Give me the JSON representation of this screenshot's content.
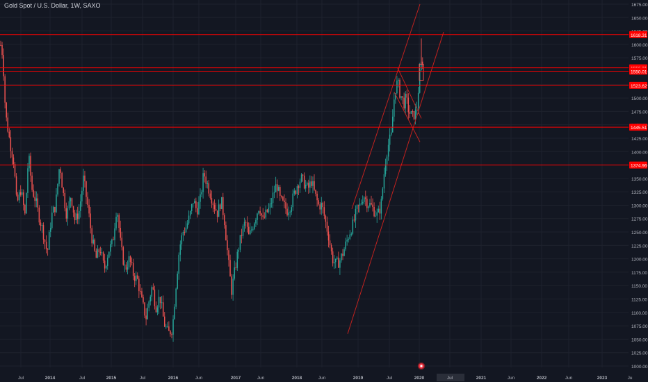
{
  "header": {
    "title": "Gold Spot / U.S. Dollar, 1W, SAXO"
  },
  "colors": {
    "background": "#131722",
    "grid": "#1e222d",
    "up": "#26a69a",
    "down": "#ef5350",
    "level_line": "#ff0000",
    "trend_line": "#c2221f",
    "axis_text": "#b2b5be"
  },
  "chart_data": {
    "type": "candlestick",
    "symbol": "Gold Spot / U.S. Dollar",
    "interval": "1W",
    "source": "SAXO",
    "ylim": [
      1000,
      1675
    ],
    "y_ticks": [
      1000,
      1025,
      1050,
      1075,
      1100,
      1125,
      1150,
      1175,
      1200,
      1225,
      1250,
      1275,
      1300,
      1325,
      1350,
      1375,
      1400,
      1425,
      1450,
      1475,
      1500,
      1525,
      1550,
      1575,
      1600,
      1625,
      1650,
      1675
    ],
    "x_ticks": [
      "Jul",
      "2014",
      "Jul",
      "2015",
      "Jul",
      "2016",
      "Jun",
      "2017",
      "Jun",
      "2018",
      "Jun",
      "2019",
      "Jul",
      "2020",
      "Jul",
      "2021",
      "Jun",
      "2022",
      "Jun",
      "2023",
      "Ju"
    ],
    "price_levels": [
      {
        "label": "1618.31",
        "value": 1618.31
      },
      {
        "label": "1556.31",
        "value": 1556.31
      },
      {
        "label": "1550.01",
        "value": 1550.01
      },
      {
        "label": "1523.62",
        "value": 1523.62
      },
      {
        "label": "1445.51",
        "value": 1445.51
      },
      {
        "label": "1374.96",
        "value": 1374.96
      }
    ],
    "series": [
      {
        "name": "",
        "path_points": [
          [
            0,
            1605
          ],
          [
            4,
            1580
          ],
          [
            8,
            1470
          ],
          [
            14,
            1420
          ],
          [
            20,
            1380
          ],
          [
            24,
            1300
          ],
          [
            30,
            1330
          ],
          [
            36,
            1280
          ],
          [
            41,
            1395
          ],
          [
            46,
            1330
          ],
          [
            51,
            1310
          ],
          [
            56,
            1280
          ],
          [
            62,
            1250
          ],
          [
            68,
            1210
          ],
          [
            74,
            1280
          ],
          [
            80,
            1300
          ],
          [
            86,
            1380
          ],
          [
            90,
            1330
          ],
          [
            96,
            1280
          ],
          [
            102,
            1320
          ],
          [
            108,
            1270
          ],
          [
            114,
            1290
          ],
          [
            120,
            1350
          ],
          [
            126,
            1300
          ],
          [
            132,
            1240
          ],
          [
            138,
            1200
          ],
          [
            144,
            1220
          ],
          [
            150,
            1180
          ],
          [
            156,
            1215
          ],
          [
            162,
            1230
          ],
          [
            168,
            1300
          ],
          [
            174,
            1220
          ],
          [
            180,
            1180
          ],
          [
            186,
            1200
          ],
          [
            192,
            1170
          ],
          [
            198,
            1160
          ],
          [
            204,
            1120
          ],
          [
            210,
            1090
          ],
          [
            214,
            1120
          ],
          [
            219,
            1150
          ],
          [
            224,
            1110
          ],
          [
            230,
            1130
          ],
          [
            236,
            1080
          ],
          [
            242,
            1060
          ],
          [
            248,
            1070
          ],
          [
            253,
            1150
          ],
          [
            258,
            1220
          ],
          [
            263,
            1250
          ],
          [
            268,
            1260
          ],
          [
            273,
            1280
          ],
          [
            278,
            1310
          ],
          [
            283,
            1290
          ],
          [
            288,
            1310
          ],
          [
            293,
            1360
          ],
          [
            298,
            1340
          ],
          [
            303,
            1320
          ],
          [
            308,
            1300
          ],
          [
            313,
            1285
          ],
          [
            318,
            1310
          ],
          [
            323,
            1270
          ],
          [
            328,
            1200
          ],
          [
            333,
            1140
          ],
          [
            338,
            1180
          ],
          [
            343,
            1220
          ],
          [
            348,
            1250
          ],
          [
            353,
            1270
          ],
          [
            358,
            1240
          ],
          [
            363,
            1260
          ],
          [
            368,
            1280
          ],
          [
            373,
            1300
          ],
          [
            378,
            1270
          ],
          [
            383,
            1285
          ],
          [
            388,
            1295
          ],
          [
            393,
            1320
          ],
          [
            398,
            1340
          ],
          [
            403,
            1310
          ],
          [
            408,
            1300
          ],
          [
            413,
            1290
          ],
          [
            418,
            1300
          ],
          [
            423,
            1320
          ],
          [
            428,
            1340
          ],
          [
            433,
            1350
          ],
          [
            438,
            1340
          ],
          [
            443,
            1330
          ],
          [
            448,
            1345
          ],
          [
            453,
            1320
          ],
          [
            458,
            1300
          ],
          [
            463,
            1300
          ],
          [
            468,
            1270
          ],
          [
            473,
            1240
          ],
          [
            478,
            1200
          ],
          [
            483,
            1190
          ],
          [
            488,
            1195
          ],
          [
            493,
            1210
          ],
          [
            498,
            1230
          ],
          [
            503,
            1250
          ],
          [
            508,
            1265
          ],
          [
            513,
            1290
          ],
          [
            518,
            1300
          ],
          [
            523,
            1320
          ],
          [
            528,
            1305
          ],
          [
            533,
            1300
          ],
          [
            538,
            1290
          ],
          [
            543,
            1280
          ],
          [
            548,
            1300
          ],
          [
            551,
            1340
          ],
          [
            554,
            1380
          ],
          [
            557,
            1405
          ],
          [
            560,
            1420
          ],
          [
            563,
            1430
          ],
          [
            566,
            1490
          ],
          [
            569,
            1520
          ],
          [
            572,
            1530
          ],
          [
            575,
            1510
          ],
          [
            578,
            1500
          ],
          [
            581,
            1490
          ],
          [
            584,
            1500
          ],
          [
            587,
            1480
          ],
          [
            590,
            1470
          ],
          [
            593,
            1465
          ],
          [
            596,
            1470
          ],
          [
            599,
            1475
          ],
          [
            602,
            1520
          ],
          [
            605,
            1560
          ],
          [
            608,
            1570
          ]
        ]
      }
    ]
  }
}
